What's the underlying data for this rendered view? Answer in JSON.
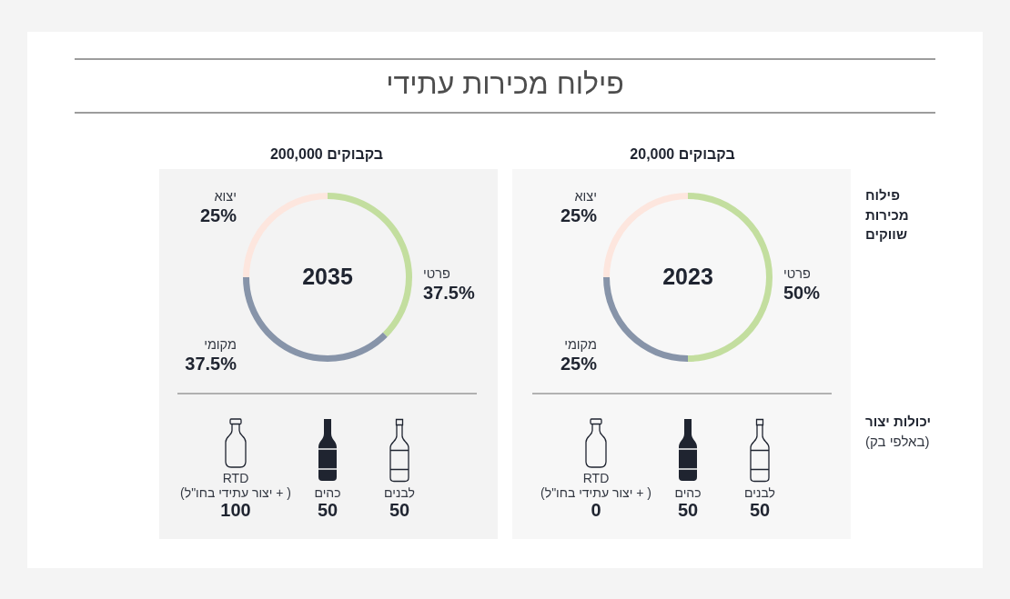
{
  "chart_data": [
    {
      "type": "other",
      "title": "פילוח מכירות עתידי"
    },
    {
      "type": "donut",
      "title": "20,000 בקבוקים",
      "ylabel": "פילוח מכירות שווקים",
      "annotations": [
        "2023"
      ],
      "categories": [
        "פרטי",
        "מקומי",
        "יצוא"
      ],
      "values": [
        50,
        25,
        25
      ],
      "colors": [
        "#c3de9f",
        "#8794a9",
        "#fde6de"
      ],
      "value_labels": [
        "50%",
        "25%",
        "25%"
      ]
    },
    {
      "type": "donut",
      "title": "200,000 בקבוקים",
      "annotations": [
        "2035"
      ],
      "categories": [
        "פרטי",
        "מקומי",
        "יצוא"
      ],
      "values": [
        37.5,
        37.5,
        25
      ],
      "colors": [
        "#c3de9f",
        "#8794a9",
        "#fde6de"
      ],
      "value_labels": [
        "37.5%",
        "37.5%",
        "25%"
      ]
    },
    {
      "type": "other",
      "ylabel": "יכולות יצור (באלפי בק)",
      "categories": [
        "RTD ( + יצור עתידי בחו\"ל)",
        "כהים",
        "לבנים"
      ],
      "values": [
        0,
        50,
        50
      ],
      "data_labels": true
    },
    {
      "type": "other",
      "categories": [
        "RTD ( + יצור עתידי בחו\"ל)",
        "כהים",
        "לבנים"
      ],
      "values": [
        100,
        50,
        50
      ],
      "data_labels": true
    }
  ]
}
